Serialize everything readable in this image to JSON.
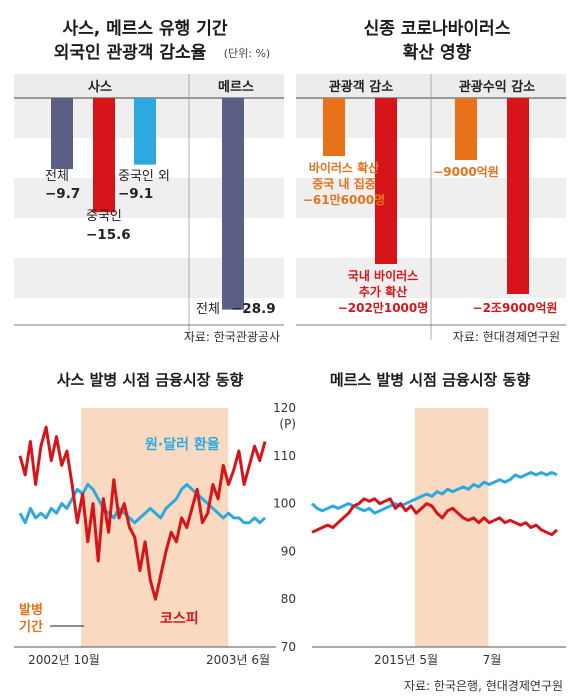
{
  "panel_a": {
    "title_line1": "사스, 메르스 유행 기간",
    "title_line2": "외국인 관광객 감소율",
    "unit": "(단위: %)",
    "header_left": "사스",
    "header_right": "메르스",
    "source": "자료: 한국관광공사"
  },
  "panel_b": {
    "title_line1": "신종 코로나바이러스",
    "title_line2": "확산 영향",
    "header_left": "관광객 감소",
    "header_right": "관광수익 감소",
    "source": "자료: 현대경제연구원"
  },
  "panel_c": {
    "title": "사스 발병 시점 금융시장 동향",
    "period_line1": "발병",
    "period_line2": "기간",
    "fx_label": "원·달러 환율",
    "kospi_label": "코스피",
    "x_start": "2002년 10월",
    "x_end": "2003년 6월"
  },
  "panel_d": {
    "title": "메르스 발병 시점 금융시장 동향",
    "unit": "(P)",
    "x_tick_1": "2015년 5월",
    "x_tick_2": "7월",
    "source": "자료: 한국은행, 현대경제연구원"
  },
  "colors": {
    "navy": "#5b5f86",
    "red": "#d7141a",
    "cyan": "#2ea9e0",
    "orange": "#e8711c",
    "band": "#f9d9bf"
  },
  "chart_data": [
    {
      "type": "bar",
      "title": "사스, 메르스 유행 기간 외국인 관광객 감소율",
      "groups": [
        {
          "name": "사스",
          "bars": [
            {
              "label_lines": [
                "전체"
              ],
              "value": -9.7,
              "display": "−9.7"
            },
            {
              "label_lines": [
                "중국인"
              ],
              "value": -15.6,
              "display": "−15.6"
            },
            {
              "label_lines": [
                "중국인 외"
              ],
              "value": -9.1,
              "display": "−9.1"
            }
          ]
        },
        {
          "name": "메르스",
          "bars": [
            {
              "label_lines": [
                "전체"
              ],
              "value": -28.9,
              "display": "−28.9"
            }
          ]
        }
      ],
      "ylim": [
        -31,
        0
      ],
      "grid": true
    },
    {
      "type": "bar",
      "title": "신종 코로나바이러스 확산 영향",
      "groups": [
        {
          "name": "관광객 감소",
          "bars": [
            {
              "label_lines": [
                "바이러스 확산",
                "중국 내 집중"
              ],
              "display": "−61만6000명",
              "value": -616000
            },
            {
              "label_lines": [
                "국내 바이러스",
                "추가 확산"
              ],
              "display": "−202만1000명",
              "value": -2021000
            }
          ]
        },
        {
          "name": "관광수익 감소",
          "bars": [
            {
              "label_lines": [],
              "display": "−9000억원",
              "value": -900000000000
            },
            {
              "label_lines": [],
              "display": "−2조9000억원",
              "value": -2900000000000
            }
          ]
        }
      ]
    },
    {
      "type": "line",
      "title": "사스 발병 시점 금융시장 동향",
      "ylim": [
        70,
        120
      ],
      "period": [
        0.25,
        0.85
      ],
      "series": [
        {
          "name": "원·달러 환율",
          "values": [
            98,
            96,
            99,
            97,
            98,
            97,
            99,
            98,
            100,
            99,
            101,
            103,
            102,
            104,
            103,
            101,
            99,
            98,
            97,
            99,
            98,
            97,
            96,
            97,
            98,
            99,
            98,
            97,
            99,
            100,
            101,
            103,
            104,
            103,
            102,
            101,
            100,
            99,
            98,
            97,
            98,
            97,
            97,
            96,
            96,
            97,
            96,
            97
          ]
        },
        {
          "name": "코스피",
          "values": [
            110,
            106,
            113,
            104,
            112,
            116,
            109,
            114,
            108,
            111,
            104,
            96,
            102,
            92,
            100,
            88,
            101,
            94,
            105,
            97,
            100,
            95,
            93,
            86,
            92,
            84,
            80,
            85,
            90,
            94,
            92,
            97,
            95,
            99,
            103,
            96,
            98,
            104,
            101,
            108,
            104,
            107,
            111,
            104,
            108,
            112,
            109,
            113
          ]
        }
      ]
    },
    {
      "type": "line",
      "title": "메르스 발병 시점 금융시장 동향",
      "ylim": [
        70,
        120
      ],
      "yticks": [
        70,
        80,
        90,
        100,
        110,
        120
      ],
      "period": [
        0.42,
        0.72
      ],
      "series": [
        {
          "name": "원·달러 환율",
          "values": [
            100,
            99,
            98.5,
            99,
            99.5,
            99,
            99.5,
            100,
            99.5,
            99,
            98.5,
            99,
            98,
            98.5,
            99,
            99.5,
            100,
            99.5,
            100,
            100.5,
            101,
            101.5,
            102,
            101.5,
            102.5,
            102,
            103,
            102.5,
            103,
            103.5,
            103,
            104,
            103.5,
            104.5,
            104,
            104.5,
            105,
            104.5,
            105,
            106,
            105.5,
            106,
            106.5,
            106,
            106.5,
            106,
            106.5,
            106
          ]
        },
        {
          "name": "코스피",
          "values": [
            94,
            94.5,
            95,
            95.5,
            95,
            96,
            97,
            98,
            99.5,
            100,
            101,
            100.5,
            101,
            100,
            100.5,
            101,
            99,
            100,
            98.5,
            99.5,
            98,
            99,
            100,
            99.5,
            98,
            97,
            98.5,
            99,
            98,
            97,
            96.5,
            97,
            96,
            97,
            96,
            96.5,
            97,
            96,
            96.5,
            96,
            95.5,
            96,
            95,
            95.5,
            94.5,
            94,
            93.5,
            94.5
          ]
        }
      ]
    }
  ]
}
